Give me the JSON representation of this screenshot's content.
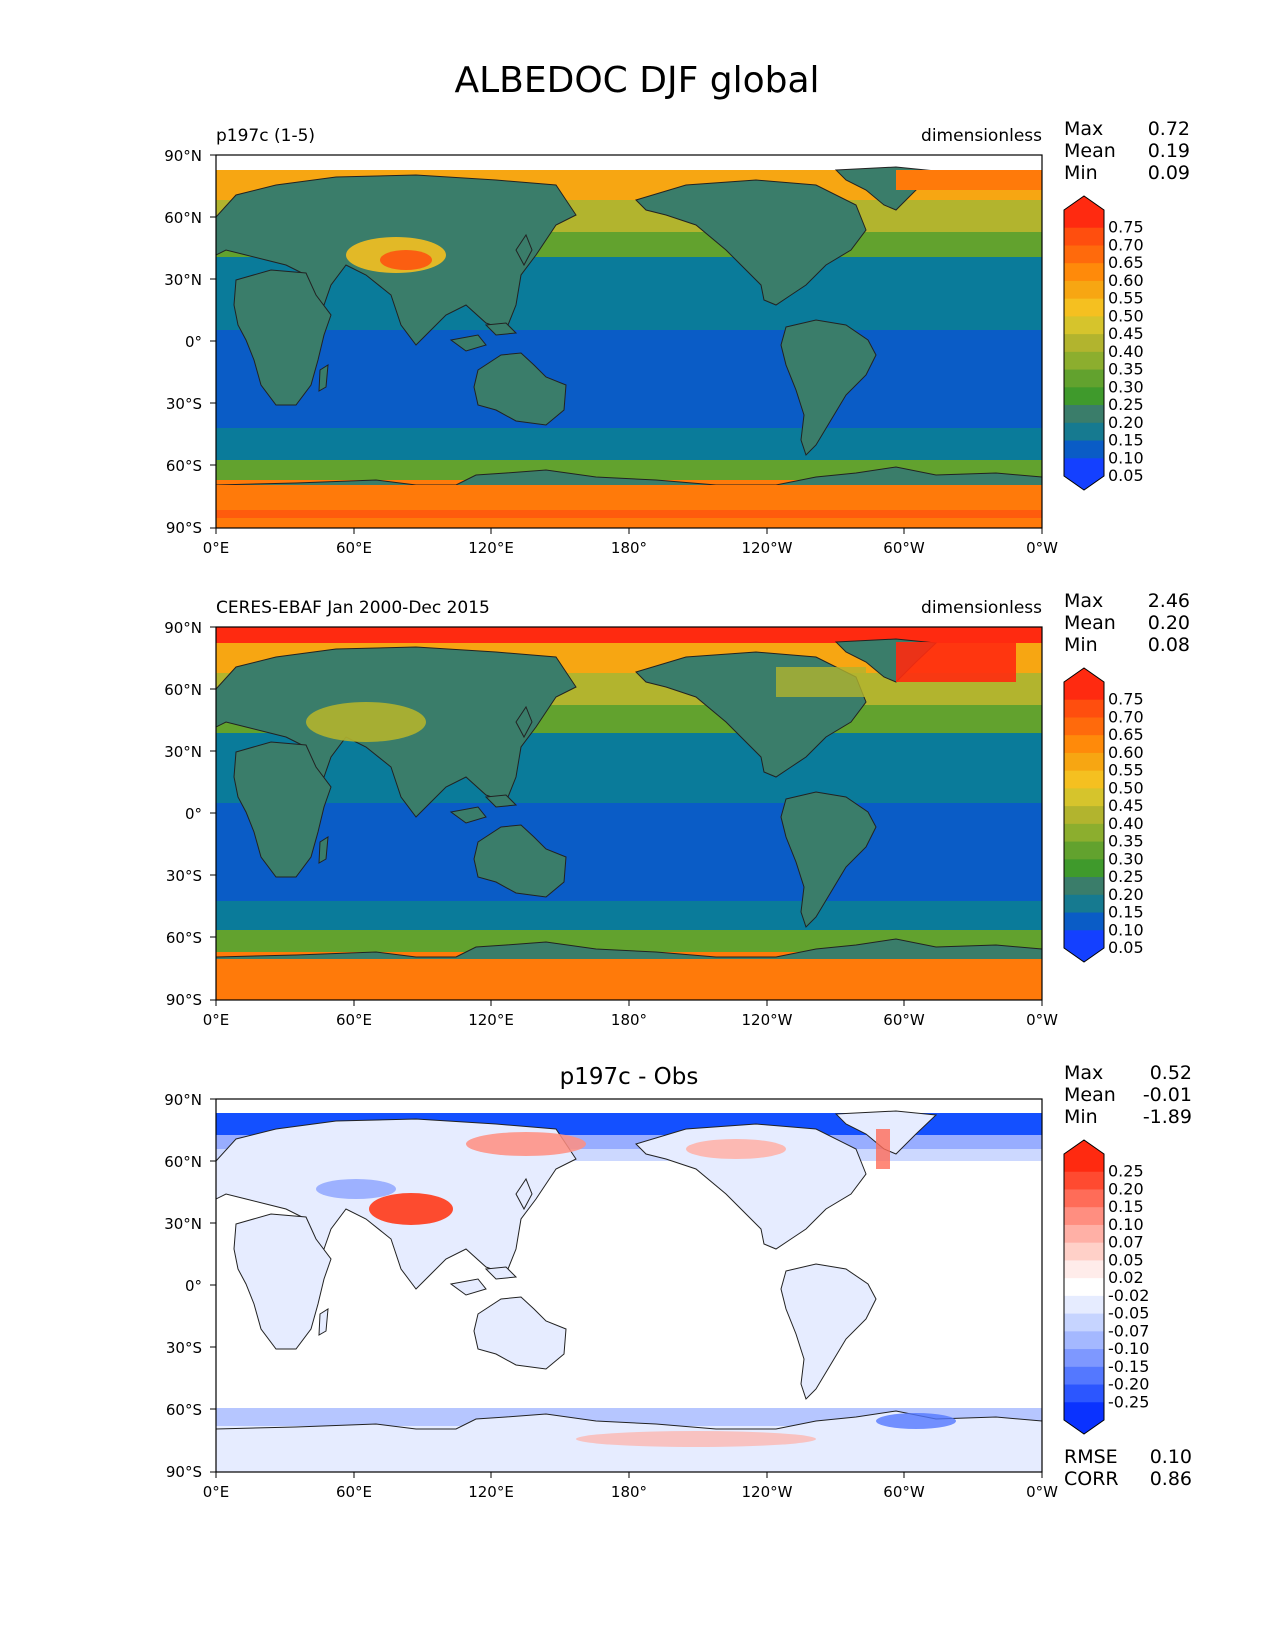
{
  "title": "ALBEDOC DJF global",
  "x_ticks": [
    "0°E",
    "60°E",
    "120°E",
    "180°",
    "120°W",
    "60°W",
    "0°W"
  ],
  "y_ticks": [
    "90°N",
    "60°N",
    "30°N",
    "0°",
    "30°S",
    "60°S",
    "90°S"
  ],
  "stat_labels": {
    "max": "Max",
    "mean": "Mean",
    "min": "Min",
    "rmse": "RMSE",
    "corr": "CORR"
  },
  "colors": {
    "land_green": "#3a7d6a",
    "ocean_teal": "#0a7b9a",
    "ocean_blue": "#0a5cc6",
    "ice_orange": "#ff7a0a",
    "red": "#ff2a10",
    "yellow": "#f5c020",
    "diff_red": "#ff3a18",
    "diff_blue": "#1450ff",
    "coast": "#222222"
  },
  "panels": [
    {
      "left_title": "p197c (1-5)",
      "center_title": "",
      "units": "dimensionless",
      "stats": {
        "max": "0.72",
        "mean": "0.19",
        "min": "0.09"
      },
      "colorbar": {
        "levels": [
          "0.75",
          "0.70",
          "0.65",
          "0.60",
          "0.55",
          "0.50",
          "0.45",
          "0.40",
          "0.35",
          "0.30",
          "0.25",
          "0.20",
          "0.15",
          "0.10",
          "0.05"
        ],
        "colors": [
          "#ff2a10",
          "#ff4e0e",
          "#ff6a0c",
          "#ff8a0a",
          "#f7a612",
          "#f5c020",
          "#d6c42c",
          "#b2b42e",
          "#8cae2e",
          "#62a22e",
          "#3f9a2c",
          "#3a7d6a",
          "#167a90",
          "#0a5cc6",
          "#1440ff"
        ]
      }
    },
    {
      "left_title": "CERES-EBAF Jan 2000-Dec 2015",
      "center_title": "",
      "units": "dimensionless",
      "stats": {
        "max": "2.46",
        "mean": "0.20",
        "min": "0.08"
      },
      "colorbar": {
        "levels": [
          "0.75",
          "0.70",
          "0.65",
          "0.60",
          "0.55",
          "0.50",
          "0.45",
          "0.40",
          "0.35",
          "0.30",
          "0.25",
          "0.20",
          "0.15",
          "0.10",
          "0.05"
        ],
        "colors": [
          "#ff2a10",
          "#ff4e0e",
          "#ff6a0c",
          "#ff8a0a",
          "#f7a612",
          "#f5c020",
          "#d6c42c",
          "#b2b42e",
          "#8cae2e",
          "#62a22e",
          "#3f9a2c",
          "#3a7d6a",
          "#167a90",
          "#0a5cc6",
          "#1440ff"
        ]
      }
    },
    {
      "left_title": "",
      "center_title": "p197c - Obs",
      "units": "",
      "stats": {
        "max": "0.52",
        "mean": "-0.01",
        "min": "-1.89",
        "rmse": "0.10",
        "corr": "0.86"
      },
      "colorbar": {
        "levels": [
          "0.25",
          "0.20",
          "0.15",
          "0.10",
          "0.07",
          "0.05",
          "0.02",
          "-0.02",
          "-0.05",
          "-0.07",
          "-0.10",
          "-0.15",
          "-0.20",
          "-0.25"
        ],
        "colors": [
          "#ff2a10",
          "#ff4a30",
          "#ff6c58",
          "#ff8e80",
          "#ffb0a6",
          "#ffd0c8",
          "#ffecea",
          "#ffffff",
          "#e6ecff",
          "#c6d4ff",
          "#a4b8ff",
          "#7e98ff",
          "#5478ff",
          "#2c56ff",
          "#0a32ff"
        ]
      }
    }
  ]
}
